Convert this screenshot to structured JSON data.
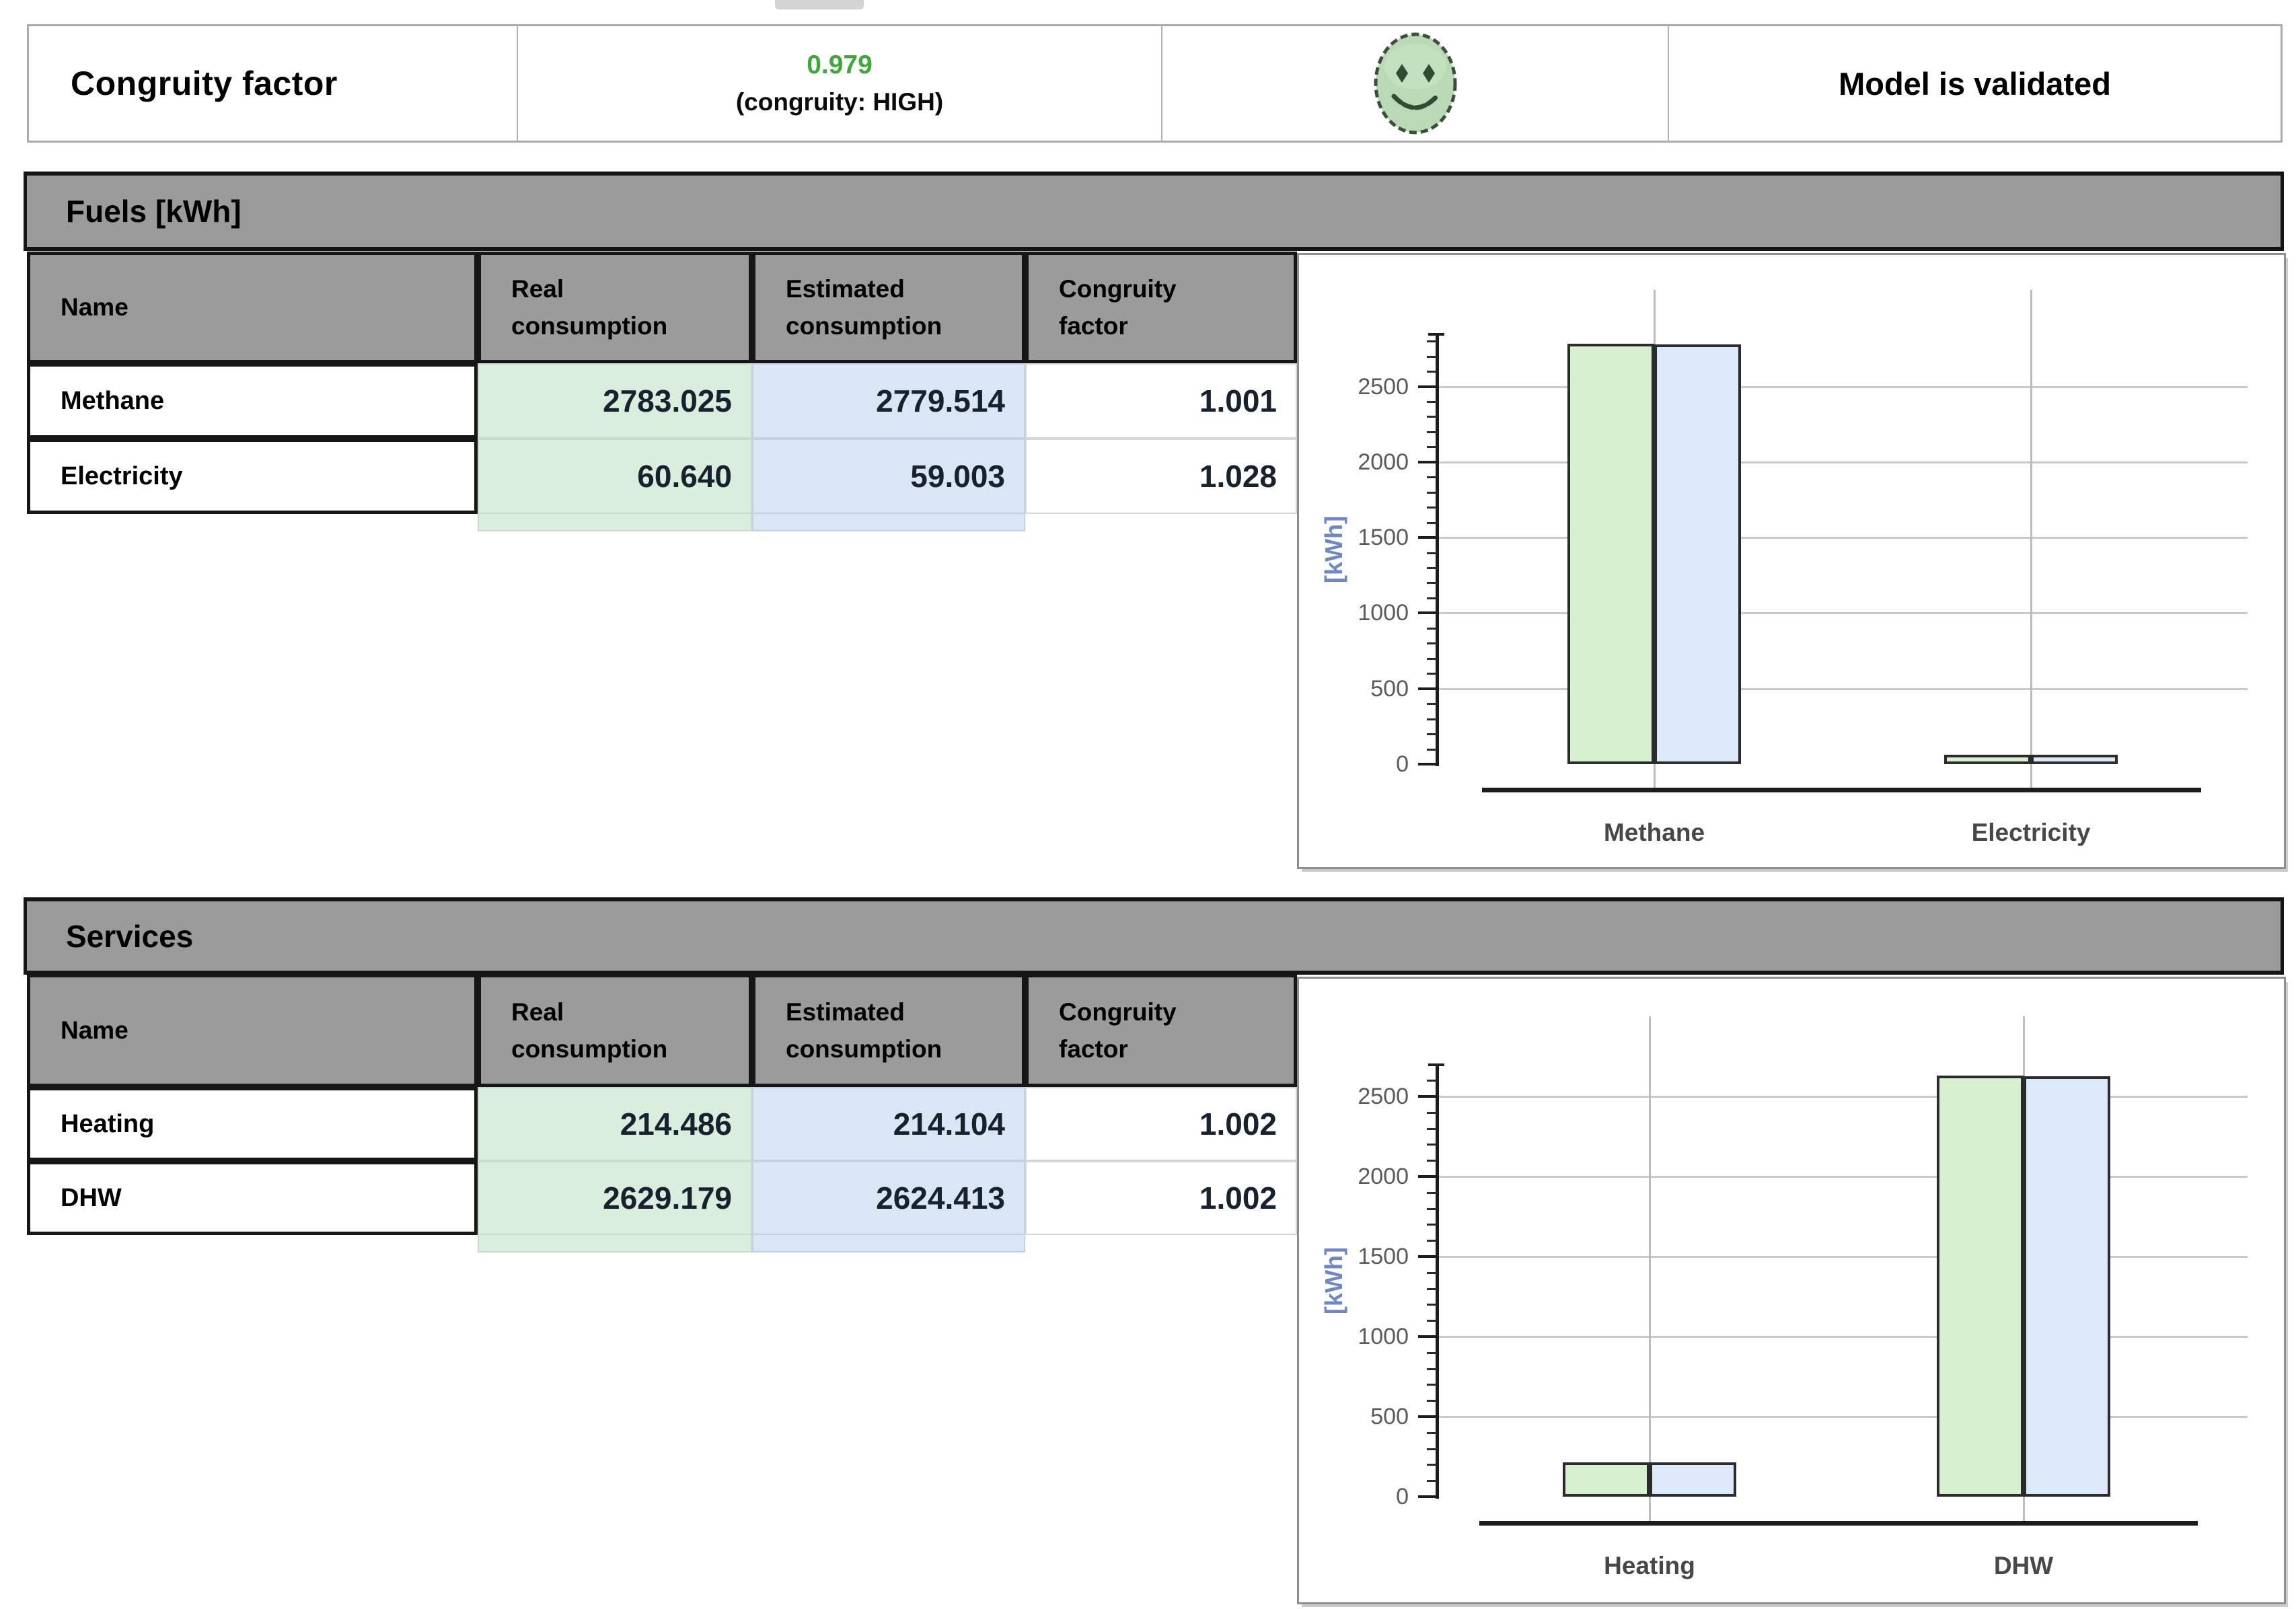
{
  "topbar": {
    "label": "Congruity factor",
    "value": "0.979",
    "note": "(congruity: HIGH)",
    "icon": "green-smiley-face",
    "status": "Model is validated"
  },
  "fuels": {
    "title": "Fuels [kWh]",
    "headers": {
      "name": "Name",
      "real": "Real consumption",
      "estimated": "Estimated consumption",
      "factor": "Congruity factor"
    },
    "rows": [
      {
        "name": "Methane",
        "real": "2783.025",
        "estimated": "2779.514",
        "factor": "1.001"
      },
      {
        "name": "Electricity",
        "real": "60.640",
        "estimated": "59.003",
        "factor": "1.028"
      }
    ]
  },
  "services": {
    "title": "Services",
    "headers": {
      "name": "Name",
      "real": "Real consumption",
      "estimated": "Estimated consumption",
      "factor": "Congruity factor"
    },
    "rows": [
      {
        "name": "Heating",
        "real": "214.486",
        "estimated": "214.104",
        "factor": "1.002"
      },
      {
        "name": "DHW",
        "real": "2629.179",
        "estimated": "2624.413",
        "factor": "1.002"
      }
    ]
  },
  "chart_data": [
    {
      "type": "bar",
      "categories": [
        "Methane",
        "Electricity"
      ],
      "series": [
        {
          "name": "Real consumption",
          "color": "#d7f0d0",
          "values": [
            2783.025,
            60.64
          ]
        },
        {
          "name": "Estimated consumption",
          "color": "#dbe9f8",
          "values": [
            2779.514,
            59.003
          ]
        }
      ],
      "ylabel": "[kWh]",
      "yticks": [
        0,
        500,
        1000,
        1500,
        2000,
        2500
      ],
      "ylim": [
        0,
        2900
      ],
      "grid": true,
      "legend": "none"
    },
    {
      "type": "bar",
      "categories": [
        "Heating",
        "DHW"
      ],
      "series": [
        {
          "name": "Real consumption",
          "color": "#d7f0d0",
          "values": [
            214.486,
            2629.179
          ]
        },
        {
          "name": "Estimated consumption",
          "color": "#dbe9f8",
          "values": [
            214.104,
            2624.413
          ]
        }
      ],
      "ylabel": "[kWh]",
      "yticks": [
        0,
        500,
        1000,
        1500,
        2000,
        2500
      ],
      "ylim": [
        0,
        2750
      ],
      "grid": true,
      "legend": "none"
    }
  ],
  "colors": {
    "value_green_text": "#3ea838",
    "header_gray": "#9b9b9b",
    "cell_green": "#d9eedd",
    "cell_blue": "#d9e6f6",
    "bar_green": "#d7f0d0",
    "bar_blue": "#dbe9f8",
    "smiley_green": "#b9dab4"
  }
}
